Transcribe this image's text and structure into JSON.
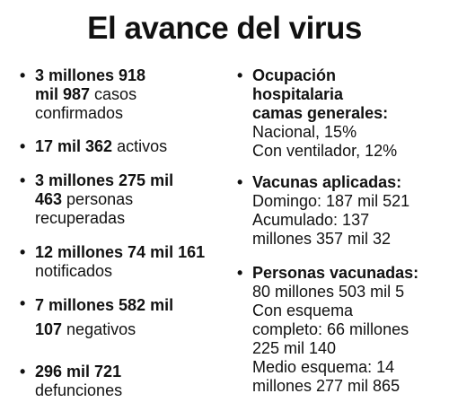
{
  "title": "El avance del virus",
  "bullet": "•",
  "left": {
    "confirmados": {
      "bold_1": "3 millones 918",
      "bold_2": "mil 987",
      "text_2": " casos",
      "text_3": "confirmados"
    },
    "activos": {
      "bold_1": "17 mil 362",
      "text_1": " activos"
    },
    "recuperados": {
      "bold_1": "3 millones 275 mil",
      "bold_2": "463",
      "text_2": " personas",
      "text_3": "recuperadas"
    },
    "notificados": {
      "bold_1": "12 millones 74 mil 161",
      "text_2": "notificados"
    },
    "negativos": {
      "bold_1": "7 millones 582 mil",
      "bold_2": "107",
      "text_2": " negativos"
    },
    "defunciones": {
      "bold_1": "296 mil 721",
      "text_2": "defunciones"
    }
  },
  "right": {
    "ocupacion": {
      "bold_1": "Ocupación",
      "bold_2": "hospitalaria",
      "bold_3": "camas generales:",
      "text_4": "Nacional, 15%",
      "text_5": "Con ventilador, 12%"
    },
    "vacunas": {
      "bold_1": "Vacunas aplicadas:",
      "text_2": "Domingo: 187 mil 521",
      "text_3": "Acumulado: 137",
      "text_4": "millones 357 mil 32"
    },
    "personas": {
      "bold_1": "Personas vacunadas:",
      "text_2": "80 millones 503 mil 5",
      "text_3": "Con esquema",
      "text_4": "completo: 66 millones",
      "text_5": "225 mil 140",
      "text_6": "Medio esquema: 14",
      "text_7": "millones 277 mil 865"
    }
  }
}
